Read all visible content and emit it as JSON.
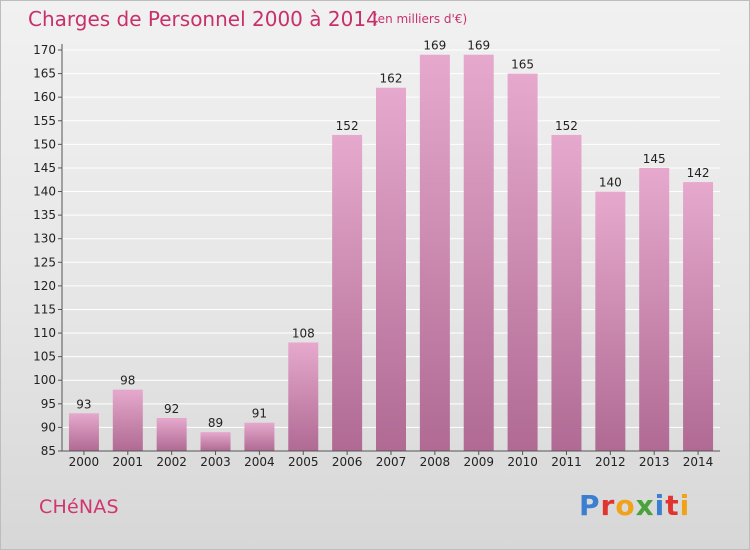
{
  "title": "Charges de Personnel 2000 à 2014",
  "subtitle": "(en milliers d'€)",
  "commune": "CHéNAS",
  "brand": {
    "text": "Proxiti",
    "letter_colors": [
      "#3b7fd1",
      "#e0342f",
      "#f0a21a",
      "#4aa33a",
      "#3b7fd1",
      "#e0342f",
      "#f0a21a"
    ]
  },
  "colors": {
    "bar_light": "#e6a9cd",
    "bar_dark": "#b06a93",
    "axis": "#555555",
    "grid": "#ffffff"
  },
  "chart_data": {
    "type": "bar",
    "title": "Charges de Personnel 2000 à 2014",
    "subtitle": "(en milliers d'€)",
    "categories": [
      "2000",
      "2001",
      "2002",
      "2003",
      "2004",
      "2005",
      "2006",
      "2007",
      "2008",
      "2009",
      "2010",
      "2011",
      "2012",
      "2013",
      "2014"
    ],
    "values": [
      93,
      98,
      92,
      89,
      91,
      108,
      152,
      162,
      169,
      169,
      165,
      152,
      140,
      145,
      142
    ],
    "ylim": [
      85,
      170
    ],
    "yticks": [
      85,
      90,
      95,
      100,
      105,
      110,
      115,
      120,
      125,
      130,
      135,
      140,
      145,
      150,
      155,
      160,
      165,
      170
    ],
    "grid": true,
    "legend": "none"
  }
}
